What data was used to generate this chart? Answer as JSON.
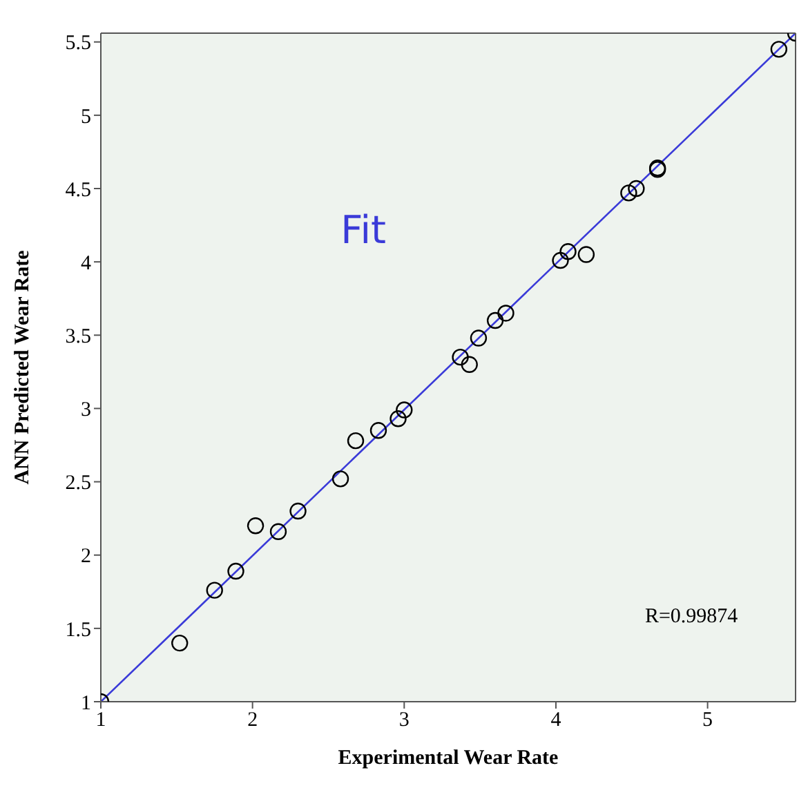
{
  "chart_data": {
    "type": "scatter",
    "xlabel": "Experimental Wear Rate",
    "ylabel": "ANN Predicted Wear Rate",
    "xlim": [
      1,
      5.58
    ],
    "ylim": [
      1,
      5.56
    ],
    "xticks": [
      1,
      2,
      3,
      4,
      5
    ],
    "yticks": [
      1,
      1.5,
      2,
      2.5,
      3,
      3.5,
      4,
      4.5,
      5,
      5.5
    ],
    "grid": false,
    "marker": "circle",
    "series": [
      {
        "color": "#000000",
        "x": [
          1,
          1.52,
          1.75,
          1.89,
          2.02,
          2.17,
          2.3,
          2.58,
          2.68,
          2.83,
          2.96,
          3.0,
          3.37,
          3.43,
          3.49,
          3.6,
          3.67,
          4.03,
          4.08,
          4.2,
          4.48,
          4.53,
          4.67,
          4.67,
          5.47,
          5.58
        ],
        "values": [
          1,
          1.4,
          1.76,
          1.89,
          2.2,
          2.16,
          2.3,
          2.52,
          2.78,
          2.85,
          2.93,
          2.99,
          3.35,
          3.3,
          3.48,
          3.6,
          3.65,
          4.01,
          4.07,
          4.05,
          4.47,
          4.5,
          4.64,
          4.63,
          5.45,
          5.56
        ]
      },
      {
        "type": "line",
        "name": "Fit",
        "marker": "none",
        "color": "#3a3ad8",
        "x": [
          1,
          5.58
        ],
        "values": [
          1,
          5.56
        ]
      }
    ],
    "annotations": [
      "R=0.99874"
    ]
  }
}
